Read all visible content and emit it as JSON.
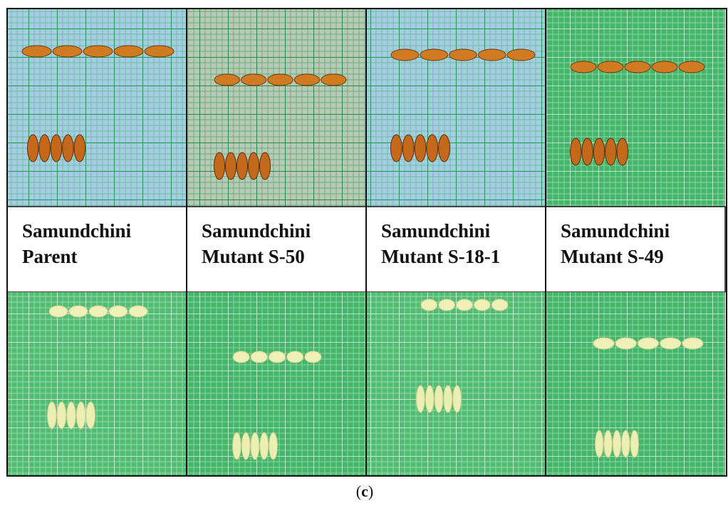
{
  "panels": [
    {
      "lines": [
        "Samundchini",
        "Parent"
      ]
    },
    {
      "lines": [
        "Samundchini",
        "Mutant S-50"
      ]
    },
    {
      "lines": [
        "Samundchini",
        "Mutant S-18-1"
      ]
    },
    {
      "lines": [
        "Samundchini",
        "Mutant S-49"
      ]
    }
  ],
  "caption": {
    "open": "(",
    "letter": "c",
    "close": ")"
  }
}
